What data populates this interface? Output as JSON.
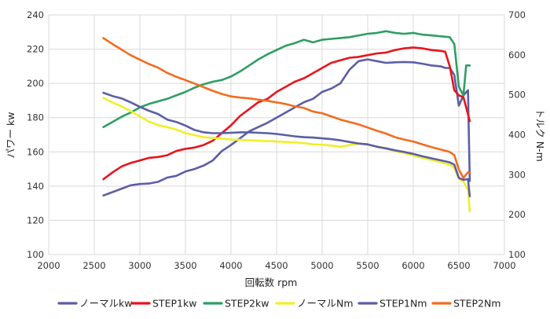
{
  "chart_data": {
    "type": "line",
    "xlabel": "回転数 rpm",
    "ylabel_left": "パワー kw",
    "ylabel_right": "トルク N-m",
    "xlim": [
      2000,
      7000
    ],
    "ylim_left": [
      100,
      240
    ],
    "ylim_right": [
      100,
      700
    ],
    "x_ticks": [
      "2000",
      "2500",
      "3000",
      "3500",
      "4000",
      "4500",
      "5000",
      "5500",
      "6000",
      "6500",
      "7000"
    ],
    "y_ticks_left": [
      "100",
      "120",
      "140",
      "160",
      "180",
      "200",
      "220",
      "240"
    ],
    "y_ticks_right": [
      "100",
      "200",
      "300",
      "400",
      "500",
      "600",
      "700"
    ],
    "grid": true,
    "legend_position": "bottom",
    "series": [
      {
        "name": "ノーマルkw",
        "axis": "left",
        "color": "#5B5EA6",
        "points": [
          [
            2600,
            134.5
          ],
          [
            2700,
            136.5
          ],
          [
            2800,
            138.5
          ],
          [
            2900,
            140.5
          ],
          [
            3000,
            141.2
          ],
          [
            3100,
            141.5
          ],
          [
            3200,
            142.5
          ],
          [
            3300,
            145
          ],
          [
            3400,
            146
          ],
          [
            3500,
            148.5
          ],
          [
            3600,
            150
          ],
          [
            3700,
            152
          ],
          [
            3800,
            155
          ],
          [
            3900,
            160.5
          ],
          [
            4000,
            164
          ],
          [
            4100,
            168
          ],
          [
            4200,
            172
          ],
          [
            4300,
            174.5
          ],
          [
            4400,
            177
          ],
          [
            4500,
            180
          ],
          [
            4600,
            183
          ],
          [
            4700,
            186
          ],
          [
            4800,
            189
          ],
          [
            4900,
            191
          ],
          [
            5000,
            195
          ],
          [
            5100,
            197
          ],
          [
            5200,
            200
          ],
          [
            5250,
            204
          ],
          [
            5300,
            208
          ],
          [
            5400,
            213
          ],
          [
            5500,
            214
          ],
          [
            5600,
            213
          ],
          [
            5700,
            212
          ],
          [
            5800,
            212.3
          ],
          [
            5900,
            212.5
          ],
          [
            6000,
            212.3
          ],
          [
            6100,
            211.5
          ],
          [
            6200,
            210.5
          ],
          [
            6300,
            210
          ],
          [
            6350,
            209
          ],
          [
            6400,
            209
          ],
          [
            6450,
            205
          ],
          [
            6500,
            187
          ],
          [
            6550,
            193
          ],
          [
            6600,
            196
          ],
          [
            6620,
            143
          ]
        ]
      },
      {
        "name": "STEP1kw",
        "axis": "left",
        "color": "#E8141C",
        "points": [
          [
            2600,
            144
          ],
          [
            2700,
            148
          ],
          [
            2800,
            151.5
          ],
          [
            2900,
            153.5
          ],
          [
            3000,
            155
          ],
          [
            3100,
            156.5
          ],
          [
            3200,
            157
          ],
          [
            3300,
            158
          ],
          [
            3400,
            160.5
          ],
          [
            3500,
            161.8
          ],
          [
            3600,
            162.5
          ],
          [
            3700,
            164
          ],
          [
            3800,
            166.5
          ],
          [
            3900,
            171
          ],
          [
            4000,
            175.5
          ],
          [
            4100,
            181
          ],
          [
            4200,
            185
          ],
          [
            4300,
            189
          ],
          [
            4400,
            191
          ],
          [
            4500,
            195
          ],
          [
            4600,
            198
          ],
          [
            4700,
            201
          ],
          [
            4800,
            203
          ],
          [
            4900,
            206
          ],
          [
            5000,
            209
          ],
          [
            5100,
            212
          ],
          [
            5200,
            213.5
          ],
          [
            5300,
            215
          ],
          [
            5400,
            215.5
          ],
          [
            5500,
            216.5
          ],
          [
            5600,
            217.5
          ],
          [
            5700,
            218
          ],
          [
            5800,
            219.5
          ],
          [
            5900,
            220.5
          ],
          [
            6000,
            221
          ],
          [
            6100,
            220.5
          ],
          [
            6200,
            219.5
          ],
          [
            6300,
            219
          ],
          [
            6350,
            218.5
          ],
          [
            6400,
            210
          ],
          [
            6450,
            196
          ],
          [
            6500,
            193
          ],
          [
            6550,
            192
          ],
          [
            6620,
            178
          ]
        ]
      },
      {
        "name": "STEP2kw",
        "axis": "left",
        "color": "#2E9E63",
        "points": [
          [
            2600,
            174.5
          ],
          [
            2700,
            177.5
          ],
          [
            2800,
            180.5
          ],
          [
            2900,
            183
          ],
          [
            3000,
            186
          ],
          [
            3100,
            188
          ],
          [
            3200,
            189.5
          ],
          [
            3300,
            191
          ],
          [
            3400,
            193
          ],
          [
            3500,
            195
          ],
          [
            3600,
            197.5
          ],
          [
            3700,
            199.5
          ],
          [
            3800,
            201
          ],
          [
            3900,
            202
          ],
          [
            4000,
            204
          ],
          [
            4100,
            207
          ],
          [
            4200,
            210.5
          ],
          [
            4300,
            214
          ],
          [
            4400,
            217
          ],
          [
            4500,
            219.5
          ],
          [
            4600,
            222
          ],
          [
            4700,
            223.5
          ],
          [
            4800,
            225.5
          ],
          [
            4900,
            224
          ],
          [
            5000,
            225.5
          ],
          [
            5100,
            226
          ],
          [
            5200,
            226.5
          ],
          [
            5300,
            227
          ],
          [
            5400,
            228
          ],
          [
            5500,
            229
          ],
          [
            5600,
            229.5
          ],
          [
            5700,
            230.5
          ],
          [
            5800,
            229.5
          ],
          [
            5900,
            229
          ],
          [
            6000,
            229.5
          ],
          [
            6100,
            228.5
          ],
          [
            6200,
            228
          ],
          [
            6300,
            227.5
          ],
          [
            6400,
            227
          ],
          [
            6450,
            223
          ],
          [
            6500,
            198
          ],
          [
            6550,
            193
          ],
          [
            6580,
            210.5
          ],
          [
            6620,
            210.5
          ]
        ]
      },
      {
        "name": "ノーマルNm",
        "axis": "right",
        "color": "#F0EF2A",
        "points": [
          [
            2600,
            492
          ],
          [
            2700,
            481
          ],
          [
            2800,
            471
          ],
          [
            2900,
            459
          ],
          [
            3000,
            446
          ],
          [
            3100,
            433
          ],
          [
            3200,
            424
          ],
          [
            3300,
            419
          ],
          [
            3400,
            413
          ],
          [
            3500,
            404
          ],
          [
            3600,
            399
          ],
          [
            3700,
            394
          ],
          [
            3800,
            392
          ],
          [
            3900,
            390
          ],
          [
            4000,
            388
          ],
          [
            4100,
            387
          ],
          [
            4200,
            386
          ],
          [
            4300,
            385
          ],
          [
            4400,
            384
          ],
          [
            4500,
            383
          ],
          [
            4600,
            382
          ],
          [
            4700,
            381
          ],
          [
            4800,
            379
          ],
          [
            4900,
            376
          ],
          [
            5000,
            375
          ],
          [
            5100,
            373
          ],
          [
            5200,
            370
          ],
          [
            5300,
            374
          ],
          [
            5400,
            378
          ],
          [
            5500,
            375
          ],
          [
            5600,
            371
          ],
          [
            5700,
            365
          ],
          [
            5800,
            359
          ],
          [
            5900,
            354
          ],
          [
            6000,
            348
          ],
          [
            6100,
            342
          ],
          [
            6200,
            337
          ],
          [
            6300,
            331
          ],
          [
            6400,
            325
          ],
          [
            6450,
            317
          ],
          [
            6500,
            290
          ],
          [
            6550,
            283
          ],
          [
            6600,
            262
          ],
          [
            6620,
            208
          ]
        ]
      },
      {
        "name": "STEP1Nm",
        "axis": "right",
        "color": "#5B5EA6",
        "points": [
          [
            2600,
            505
          ],
          [
            2700,
            497
          ],
          [
            2800,
            491
          ],
          [
            2900,
            481
          ],
          [
            3000,
            470
          ],
          [
            3100,
            460
          ],
          [
            3200,
            452
          ],
          [
            3300,
            438
          ],
          [
            3400,
            432
          ],
          [
            3500,
            423
          ],
          [
            3600,
            412
          ],
          [
            3700,
            406
          ],
          [
            3800,
            404
          ],
          [
            3900,
            404
          ],
          [
            4000,
            405
          ],
          [
            4100,
            406
          ],
          [
            4200,
            406
          ],
          [
            4300,
            405
          ],
          [
            4400,
            404
          ],
          [
            4500,
            402
          ],
          [
            4600,
            399
          ],
          [
            4700,
            396
          ],
          [
            4800,
            394
          ],
          [
            4900,
            393
          ],
          [
            5000,
            391
          ],
          [
            5100,
            389
          ],
          [
            5200,
            386
          ],
          [
            5300,
            382
          ],
          [
            5400,
            378
          ],
          [
            5500,
            376
          ],
          [
            5600,
            370
          ],
          [
            5700,
            366
          ],
          [
            5800,
            361
          ],
          [
            5900,
            357
          ],
          [
            6000,
            352
          ],
          [
            6100,
            346
          ],
          [
            6200,
            341
          ],
          [
            6300,
            336
          ],
          [
            6400,
            331
          ],
          [
            6450,
            325
          ],
          [
            6500,
            292
          ],
          [
            6550,
            287
          ],
          [
            6600,
            289
          ],
          [
            6620,
            246
          ]
        ]
      },
      {
        "name": "STEP2Nm",
        "axis": "right",
        "color": "#F26C1E",
        "points": [
          [
            2600,
            642
          ],
          [
            2700,
            627
          ],
          [
            2800,
            613
          ],
          [
            2900,
            599
          ],
          [
            3000,
            588
          ],
          [
            3100,
            577
          ],
          [
            3200,
            568
          ],
          [
            3300,
            555
          ],
          [
            3400,
            545
          ],
          [
            3500,
            537
          ],
          [
            3600,
            528
          ],
          [
            3700,
            519
          ],
          [
            3800,
            510
          ],
          [
            3900,
            502
          ],
          [
            4000,
            496
          ],
          [
            4100,
            493
          ],
          [
            4200,
            491
          ],
          [
            4300,
            488
          ],
          [
            4400,
            485
          ],
          [
            4500,
            481
          ],
          [
            4600,
            477
          ],
          [
            4700,
            471
          ],
          [
            4800,
            467
          ],
          [
            4900,
            458
          ],
          [
            5000,
            454
          ],
          [
            5100,
            446
          ],
          [
            5200,
            438
          ],
          [
            5300,
            432
          ],
          [
            5400,
            426
          ],
          [
            5500,
            418
          ],
          [
            5600,
            410
          ],
          [
            5700,
            403
          ],
          [
            5800,
            394
          ],
          [
            5900,
            388
          ],
          [
            6000,
            383
          ],
          [
            6100,
            376
          ],
          [
            6200,
            369
          ],
          [
            6300,
            363
          ],
          [
            6400,
            357
          ],
          [
            6450,
            349
          ],
          [
            6500,
            313
          ],
          [
            6550,
            292
          ],
          [
            6600,
            306
          ],
          [
            6620,
            305
          ]
        ]
      }
    ]
  }
}
